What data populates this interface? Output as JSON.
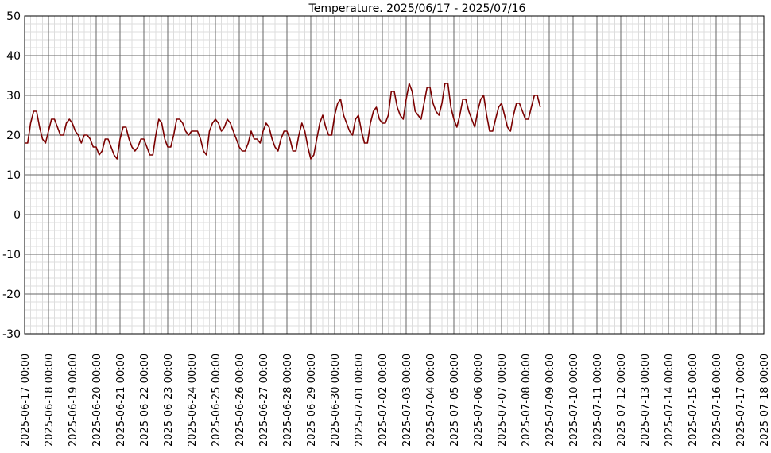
{
  "chart_data": {
    "type": "line",
    "title": "Temperature. 2025/06/17 - 2025/07/16",
    "xlabel": "",
    "ylabel": "",
    "ylim": [
      -30,
      50
    ],
    "y_ticks": [
      -30,
      -20,
      -10,
      0,
      10,
      20,
      30,
      40,
      50
    ],
    "x_start": "2025-06-17 00:00",
    "x_end": "2025-07-18 00:00",
    "x_tick_labels": [
      "2025-06-17 00:00",
      "2025-06-18 00:00",
      "2025-06-19 00:00",
      "2025-06-20 00:00",
      "2025-06-21 00:00",
      "2025-06-22 00:00",
      "2025-06-23 00:00",
      "2025-06-24 00:00",
      "2025-06-25 00:00",
      "2025-06-26 00:00",
      "2025-06-27 00:00",
      "2025-06-28 00:00",
      "2025-06-29 00:00",
      "2025-06-30 00:00",
      "2025-07-01 00:00",
      "2025-07-02 00:00",
      "2025-07-03 00:00",
      "2025-07-04 00:00",
      "2025-07-05 00:00",
      "2025-07-06 00:00",
      "2025-07-07 00:00",
      "2025-07-08 00:00",
      "2025-07-09 00:00",
      "2025-07-10 00:00",
      "2025-07-11 00:00",
      "2025-07-12 00:00",
      "2025-07-13 00:00",
      "2025-07-14 00:00",
      "2025-07-15 00:00",
      "2025-07-16 00:00",
      "2025-07-17 00:00",
      "2025-07-18 00:00"
    ],
    "grid": true,
    "line_color": "#7b0000",
    "grid_major_color": "#666666",
    "grid_minor_color": "#dddddd",
    "series": [
      {
        "points": [
          [
            "2025-06-17 00:00",
            18
          ],
          [
            "2025-06-17 03:00",
            18
          ],
          [
            "2025-06-17 06:00",
            23
          ],
          [
            "2025-06-17 09:00",
            26
          ],
          [
            "2025-06-17 12:00",
            26
          ],
          [
            "2025-06-17 15:00",
            22
          ],
          [
            "2025-06-17 18:00",
            19
          ],
          [
            "2025-06-17 21:00",
            18
          ],
          [
            "2025-06-18 00:00",
            21
          ],
          [
            "2025-06-18 03:00",
            24
          ],
          [
            "2025-06-18 06:00",
            24
          ],
          [
            "2025-06-18 09:00",
            22
          ],
          [
            "2025-06-18 12:00",
            20
          ],
          [
            "2025-06-18 15:00",
            20
          ],
          [
            "2025-06-18 18:00",
            23
          ],
          [
            "2025-06-18 21:00",
            24
          ],
          [
            "2025-06-19 00:00",
            23
          ],
          [
            "2025-06-19 03:00",
            21
          ],
          [
            "2025-06-19 06:00",
            20
          ],
          [
            "2025-06-19 09:00",
            18
          ],
          [
            "2025-06-19 12:00",
            20
          ],
          [
            "2025-06-19 15:00",
            20
          ],
          [
            "2025-06-19 18:00",
            19
          ],
          [
            "2025-06-19 21:00",
            17
          ],
          [
            "2025-06-20 00:00",
            17
          ],
          [
            "2025-06-20 03:00",
            15
          ],
          [
            "2025-06-20 06:00",
            16
          ],
          [
            "2025-06-20 09:00",
            19
          ],
          [
            "2025-06-20 12:00",
            19
          ],
          [
            "2025-06-20 15:00",
            17
          ],
          [
            "2025-06-20 18:00",
            15
          ],
          [
            "2025-06-20 21:00",
            14
          ],
          [
            "2025-06-21 00:00",
            19
          ],
          [
            "2025-06-21 03:00",
            22
          ],
          [
            "2025-06-21 06:00",
            22
          ],
          [
            "2025-06-21 09:00",
            19
          ],
          [
            "2025-06-21 12:00",
            17
          ],
          [
            "2025-06-21 15:00",
            16
          ],
          [
            "2025-06-21 18:00",
            17
          ],
          [
            "2025-06-21 21:00",
            19
          ],
          [
            "2025-06-22 00:00",
            19
          ],
          [
            "2025-06-22 03:00",
            17
          ],
          [
            "2025-06-22 06:00",
            15
          ],
          [
            "2025-06-22 09:00",
            15
          ],
          [
            "2025-06-22 12:00",
            20
          ],
          [
            "2025-06-22 15:00",
            24
          ],
          [
            "2025-06-22 18:00",
            23
          ],
          [
            "2025-06-22 21:00",
            19
          ],
          [
            "2025-06-23 00:00",
            17
          ],
          [
            "2025-06-23 03:00",
            17
          ],
          [
            "2025-06-23 06:00",
            20
          ],
          [
            "2025-06-23 09:00",
            24
          ],
          [
            "2025-06-23 12:00",
            24
          ],
          [
            "2025-06-23 15:00",
            23
          ],
          [
            "2025-06-23 18:00",
            21
          ],
          [
            "2025-06-23 21:00",
            20
          ],
          [
            "2025-06-24 00:00",
            21
          ],
          [
            "2025-06-24 03:00",
            21
          ],
          [
            "2025-06-24 06:00",
            21
          ],
          [
            "2025-06-24 09:00",
            19
          ],
          [
            "2025-06-24 12:00",
            16
          ],
          [
            "2025-06-24 15:00",
            15
          ],
          [
            "2025-06-24 18:00",
            21
          ],
          [
            "2025-06-24 21:00",
            23
          ],
          [
            "2025-06-25 00:00",
            24
          ],
          [
            "2025-06-25 03:00",
            23
          ],
          [
            "2025-06-25 06:00",
            21
          ],
          [
            "2025-06-25 09:00",
            22
          ],
          [
            "2025-06-25 12:00",
            24
          ],
          [
            "2025-06-25 15:00",
            23
          ],
          [
            "2025-06-25 18:00",
            21
          ],
          [
            "2025-06-25 21:00",
            19
          ],
          [
            "2025-06-26 00:00",
            17
          ],
          [
            "2025-06-26 03:00",
            16
          ],
          [
            "2025-06-26 06:00",
            16
          ],
          [
            "2025-06-26 09:00",
            18
          ],
          [
            "2025-06-26 12:00",
            21
          ],
          [
            "2025-06-26 15:00",
            19
          ],
          [
            "2025-06-26 18:00",
            19
          ],
          [
            "2025-06-26 21:00",
            18
          ],
          [
            "2025-06-27 00:00",
            21
          ],
          [
            "2025-06-27 03:00",
            23
          ],
          [
            "2025-06-27 06:00",
            22
          ],
          [
            "2025-06-27 09:00",
            19
          ],
          [
            "2025-06-27 12:00",
            17
          ],
          [
            "2025-06-27 15:00",
            16
          ],
          [
            "2025-06-27 18:00",
            19
          ],
          [
            "2025-06-27 21:00",
            21
          ],
          [
            "2025-06-28 00:00",
            21
          ],
          [
            "2025-06-28 03:00",
            19
          ],
          [
            "2025-06-28 06:00",
            16
          ],
          [
            "2025-06-28 09:00",
            16
          ],
          [
            "2025-06-28 12:00",
            20
          ],
          [
            "2025-06-28 15:00",
            23
          ],
          [
            "2025-06-28 18:00",
            21
          ],
          [
            "2025-06-28 21:00",
            17
          ],
          [
            "2025-06-29 00:00",
            14
          ],
          [
            "2025-06-29 03:00",
            15
          ],
          [
            "2025-06-29 06:00",
            19
          ],
          [
            "2025-06-29 09:00",
            23
          ],
          [
            "2025-06-29 12:00",
            25
          ],
          [
            "2025-06-29 15:00",
            22
          ],
          [
            "2025-06-29 18:00",
            20
          ],
          [
            "2025-06-29 21:00",
            20
          ],
          [
            "2025-06-30 00:00",
            25
          ],
          [
            "2025-06-30 03:00",
            28
          ],
          [
            "2025-06-30 06:00",
            29
          ],
          [
            "2025-06-30 09:00",
            25
          ],
          [
            "2025-06-30 12:00",
            23
          ],
          [
            "2025-06-30 15:00",
            21
          ],
          [
            "2025-06-30 18:00",
            20
          ],
          [
            "2025-06-30 21:00",
            24
          ],
          [
            "2025-07-01 00:00",
            25
          ],
          [
            "2025-07-01 03:00",
            21
          ],
          [
            "2025-07-01 06:00",
            18
          ],
          [
            "2025-07-01 09:00",
            18
          ],
          [
            "2025-07-01 12:00",
            23
          ],
          [
            "2025-07-01 15:00",
            26
          ],
          [
            "2025-07-01 18:00",
            27
          ],
          [
            "2025-07-01 21:00",
            24
          ],
          [
            "2025-07-02 00:00",
            23
          ],
          [
            "2025-07-02 03:00",
            23
          ],
          [
            "2025-07-02 06:00",
            25
          ],
          [
            "2025-07-02 09:00",
            31
          ],
          [
            "2025-07-02 12:00",
            31
          ],
          [
            "2025-07-02 15:00",
            27
          ],
          [
            "2025-07-02 18:00",
            25
          ],
          [
            "2025-07-02 21:00",
            24
          ],
          [
            "2025-07-03 00:00",
            29
          ],
          [
            "2025-07-03 03:00",
            33
          ],
          [
            "2025-07-03 06:00",
            31
          ],
          [
            "2025-07-03 09:00",
            26
          ],
          [
            "2025-07-03 12:00",
            25
          ],
          [
            "2025-07-03 15:00",
            24
          ],
          [
            "2025-07-03 18:00",
            28
          ],
          [
            "2025-07-03 21:00",
            32
          ],
          [
            "2025-07-04 00:00",
            32
          ],
          [
            "2025-07-04 03:00",
            28
          ],
          [
            "2025-07-04 06:00",
            26
          ],
          [
            "2025-07-04 09:00",
            25
          ],
          [
            "2025-07-04 12:00",
            28
          ],
          [
            "2025-07-04 15:00",
            33
          ],
          [
            "2025-07-04 18:00",
            33
          ],
          [
            "2025-07-04 21:00",
            27
          ],
          [
            "2025-07-05 00:00",
            24
          ],
          [
            "2025-07-05 03:00",
            22
          ],
          [
            "2025-07-05 06:00",
            25
          ],
          [
            "2025-07-05 09:00",
            29
          ],
          [
            "2025-07-05 12:00",
            29
          ],
          [
            "2025-07-05 15:00",
            26
          ],
          [
            "2025-07-05 18:00",
            24
          ],
          [
            "2025-07-05 21:00",
            22
          ],
          [
            "2025-07-06 00:00",
            26
          ],
          [
            "2025-07-06 03:00",
            29
          ],
          [
            "2025-07-06 06:00",
            30
          ],
          [
            "2025-07-06 09:00",
            25
          ],
          [
            "2025-07-06 12:00",
            21
          ],
          [
            "2025-07-06 15:00",
            21
          ],
          [
            "2025-07-06 18:00",
            24
          ],
          [
            "2025-07-06 21:00",
            27
          ],
          [
            "2025-07-07 00:00",
            28
          ],
          [
            "2025-07-07 03:00",
            25
          ],
          [
            "2025-07-07 06:00",
            22
          ],
          [
            "2025-07-07 09:00",
            21
          ],
          [
            "2025-07-07 12:00",
            25
          ],
          [
            "2025-07-07 15:00",
            28
          ],
          [
            "2025-07-07 18:00",
            28
          ],
          [
            "2025-07-07 21:00",
            26
          ],
          [
            "2025-07-08 00:00",
            24
          ],
          [
            "2025-07-08 03:00",
            24
          ],
          [
            "2025-07-08 06:00",
            27
          ],
          [
            "2025-07-08 09:00",
            30
          ],
          [
            "2025-07-08 12:00",
            30
          ],
          [
            "2025-07-08 15:00",
            27
          ]
        ]
      }
    ]
  }
}
